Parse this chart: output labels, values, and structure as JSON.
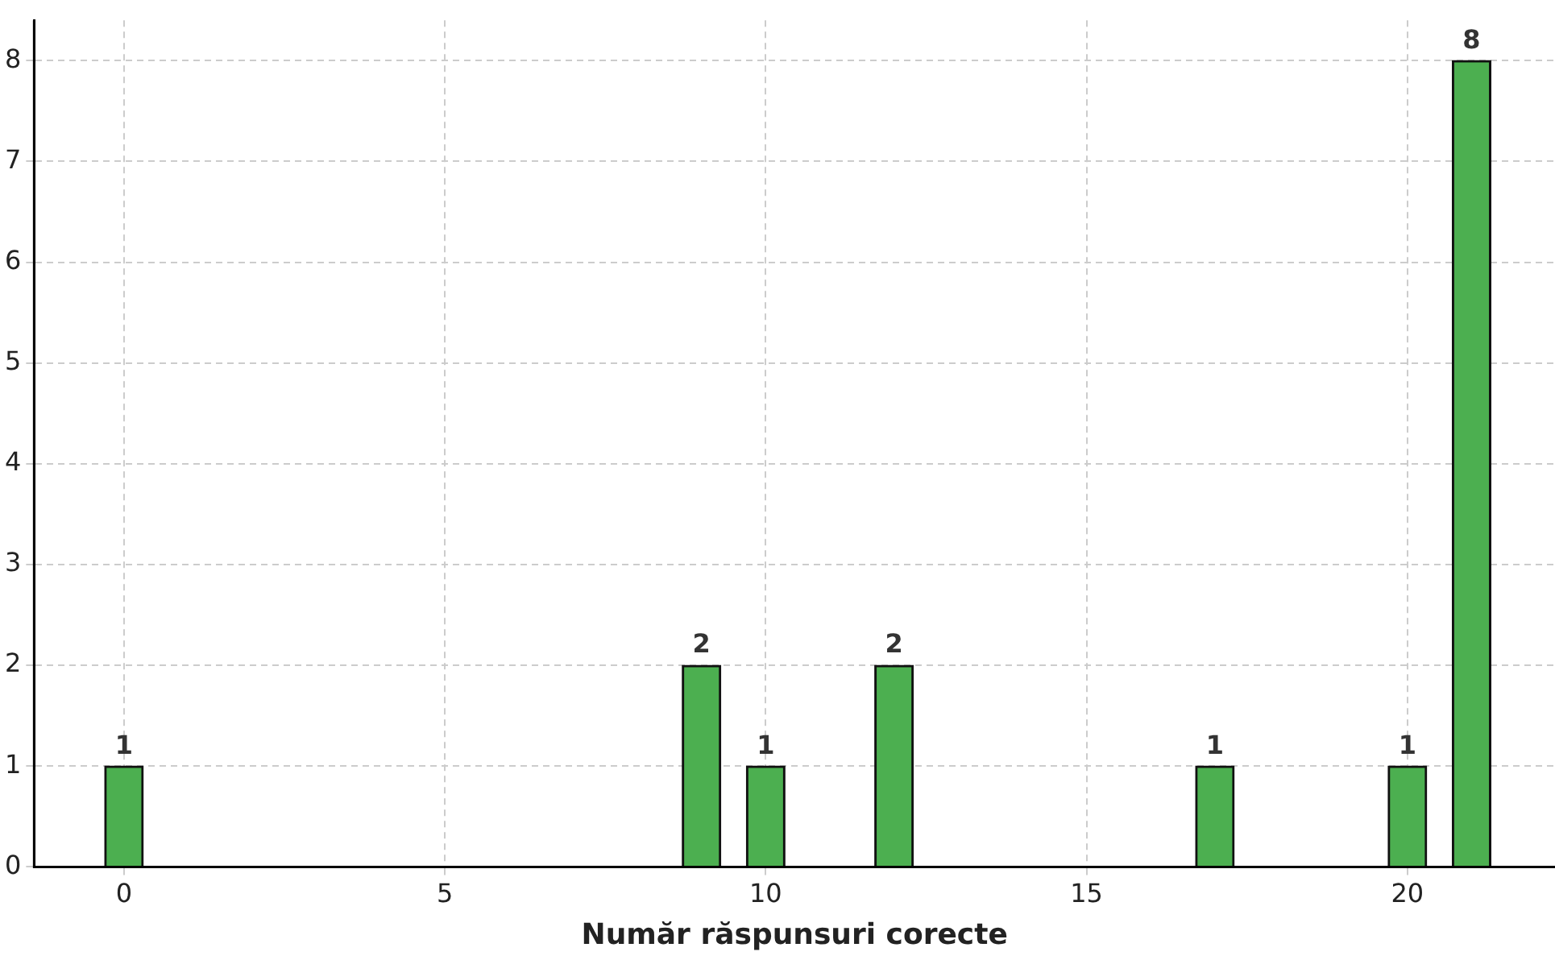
{
  "chart_data": {
    "type": "bar",
    "xlabel": "Număr răspunsuri corecte",
    "x": [
      0,
      9,
      10,
      12,
      17,
      20,
      21
    ],
    "values": [
      1,
      2,
      1,
      2,
      1,
      1,
      8
    ],
    "color": "#4caf50",
    "xlim": [
      -1.4,
      22.3
    ],
    "xticks": [
      0,
      5,
      10,
      15,
      20
    ],
    "ylim": [
      0,
      8.4
    ],
    "yticks": [
      0,
      1,
      2,
      3,
      4,
      5,
      6,
      7,
      8
    ],
    "grid": true,
    "data_labels": true
  }
}
